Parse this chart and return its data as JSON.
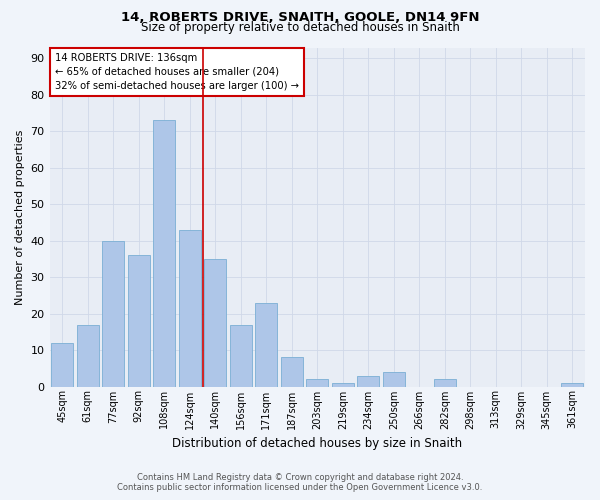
{
  "title1": "14, ROBERTS DRIVE, SNAITH, GOOLE, DN14 9FN",
  "title2": "Size of property relative to detached houses in Snaith",
  "xlabel": "Distribution of detached houses by size in Snaith",
  "ylabel": "Number of detached properties",
  "categories": [
    "45sqm",
    "61sqm",
    "77sqm",
    "92sqm",
    "108sqm",
    "124sqm",
    "140sqm",
    "156sqm",
    "171sqm",
    "187sqm",
    "203sqm",
    "219sqm",
    "234sqm",
    "250sqm",
    "266sqm",
    "282sqm",
    "298sqm",
    "313sqm",
    "329sqm",
    "345sqm",
    "361sqm"
  ],
  "values": [
    12,
    17,
    40,
    36,
    73,
    43,
    35,
    17,
    23,
    8,
    2,
    1,
    3,
    4,
    0,
    2,
    0,
    0,
    0,
    0,
    1
  ],
  "bar_color": "#aec6e8",
  "bar_edge_color": "#7bafd4",
  "property_line_x": 5.5,
  "annotation_text1": "14 ROBERTS DRIVE: 136sqm",
  "annotation_text2": "← 65% of detached houses are smaller (204)",
  "annotation_text3": "32% of semi-detached houses are larger (100) →",
  "annotation_box_color": "#ffffff",
  "annotation_box_edge_color": "#cc0000",
  "vline_color": "#cc0000",
  "ylim": [
    0,
    93
  ],
  "yticks": [
    0,
    10,
    20,
    30,
    40,
    50,
    60,
    70,
    80,
    90
  ],
  "grid_color": "#d0d8e8",
  "fig_background_color": "#f0f4fa",
  "ax_background_color": "#e8edf5",
  "footer_text": "Contains HM Land Registry data © Crown copyright and database right 2024.\nContains public sector information licensed under the Open Government Licence v3.0."
}
